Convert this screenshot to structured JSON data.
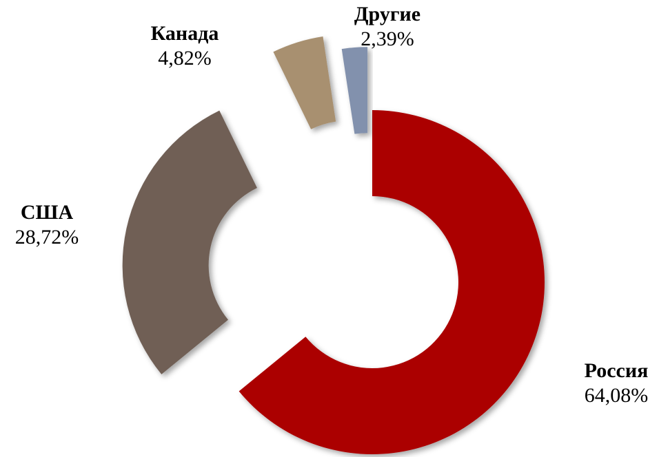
{
  "chart_data": {
    "type": "donut",
    "categories": [
      "Россия",
      "США",
      "Канада",
      "Другие"
    ],
    "values": [
      64.08,
      28.72,
      4.82,
      2.39
    ],
    "value_labels": [
      "64,08%",
      "28,72%",
      "4,82%",
      "2,39%"
    ],
    "colors": [
      "#ab0000",
      "#6f5f55",
      "#a89070",
      "#8291ad"
    ]
  }
}
